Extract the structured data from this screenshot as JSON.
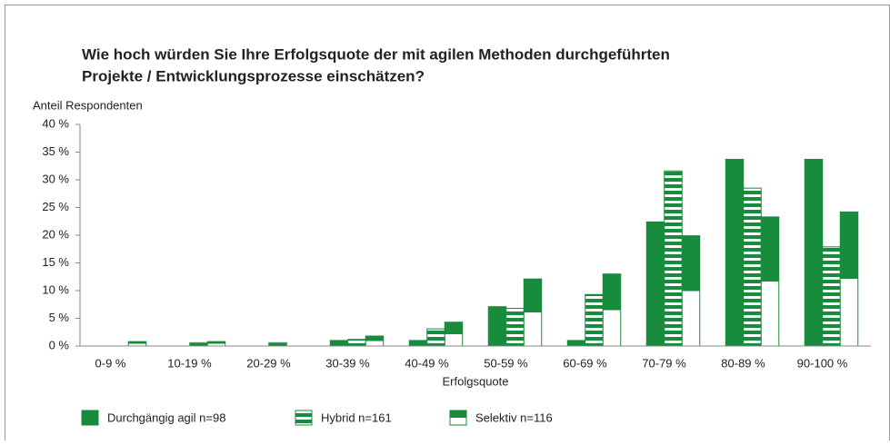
{
  "chart_data": {
    "type": "bar",
    "title": [
      "Wie hoch würden Sie Ihre Erfolgsquote der mit agilen Methoden durchgeführten",
      "Projekte / Entwicklungsprozesse einschätzen?"
    ],
    "y_label": "Anteil Respondenten",
    "x_label": "Erfolgsquote",
    "categories": [
      "0-9 %",
      "10-19 %",
      "20-29 %",
      "30-39 %",
      "40-49 %",
      "50-59 %",
      "60-69 %",
      "70-79 %",
      "80-89 %",
      "90-100 %"
    ],
    "series": [
      {
        "name": "Durchgängig agil n=98",
        "color": "#178c3c",
        "fill": "solid",
        "values": [
          0,
          0,
          0,
          1,
          1,
          7.1,
          1,
          22.4,
          33.7,
          33.7
        ]
      },
      {
        "name": "Hybrid n=161",
        "color": "#178c3c",
        "fill": "striped",
        "values": [
          0,
          0.6,
          0.6,
          1.2,
          3.1,
          6.8,
          9.3,
          31.6,
          28.5,
          17.9
        ]
      },
      {
        "name": "Selektiv n=116",
        "color": "#178c3c",
        "fill": "half",
        "values": [
          0.8,
          0.8,
          0,
          1.8,
          4.3,
          12.1,
          13,
          19.9,
          23.3,
          24.2
        ]
      }
    ],
    "ylim": [
      0,
      40
    ],
    "yticks": [
      {
        "value": 0,
        "label": "0 %"
      },
      {
        "value": 5,
        "label": "5 %"
      },
      {
        "value": 10,
        "label": "10 %"
      },
      {
        "value": 15,
        "label": "15 %"
      },
      {
        "value": 20,
        "label": "20 %"
      },
      {
        "value": 25,
        "label": "25 %"
      },
      {
        "value": 30,
        "label": "30 %"
      },
      {
        "value": 35,
        "label": "35 %"
      },
      {
        "value": 40,
        "label": "40 %"
      }
    ]
  }
}
